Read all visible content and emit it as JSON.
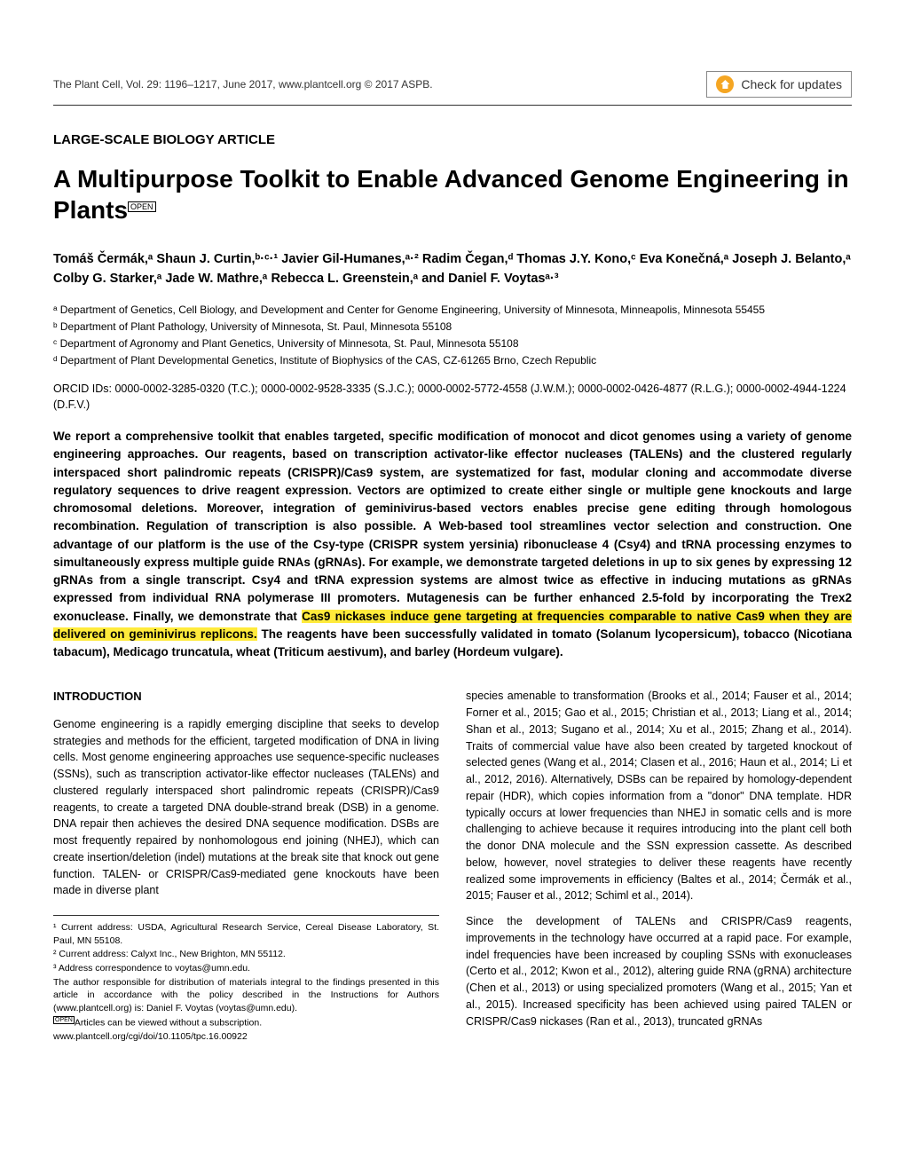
{
  "header": {
    "journal_line": "The Plant Cell, Vol. 29: 1196–1217, June 2017, www.plantcell.org © 2017 ASPB.",
    "check_updates": "Check for updates"
  },
  "article_type": "LARGE-SCALE BIOLOGY ARTICLE",
  "title_main": "A Multipurpose Toolkit to Enable Advanced Genome Engineering in Plants",
  "title_badge": "OPEN",
  "authors": "Tomáš Čermák,ᵃ Shaun J. Curtin,ᵇ·ᶜ·¹ Javier Gil-Humanes,ᵃ·² Radim Čegan,ᵈ Thomas J.Y. Kono,ᶜ Eva Konečná,ᵃ Joseph J. Belanto,ᵃ Colby G. Starker,ᵃ Jade W. Mathre,ᵃ Rebecca L. Greenstein,ᵃ and Daniel F. Voytasᵃ·³",
  "affiliations": {
    "a": "ᵃ Department of Genetics, Cell Biology, and Development and Center for Genome Engineering, University of Minnesota, Minneapolis, Minnesota 55455",
    "b": "ᵇ Department of Plant Pathology, University of Minnesota, St. Paul, Minnesota 55108",
    "c": "ᶜ Department of Agronomy and Plant Genetics, University of Minnesota, St. Paul, Minnesota 55108",
    "d": "ᵈ Department of Plant Developmental Genetics, Institute of Biophysics of the CAS, CZ-61265 Brno, Czech Republic"
  },
  "orcid": "ORCID IDs: 0000-0002-3285-0320 (T.C.); 0000-0002-9528-3335 (S.J.C.); 0000-0002-5772-4558 (J.W.M.); 0000-0002-0426-4877 (R.L.G.); 0000-0002-4944-1224 (D.F.V.)",
  "abstract": {
    "pre": "We report a comprehensive toolkit that enables targeted, specific modification of monocot and dicot genomes using a variety of genome engineering approaches. Our reagents, based on transcription activator-like effector nucleases (TALENs) and the clustered regularly interspaced short palindromic repeats (CRISPR)/Cas9 system, are systematized for fast, modular cloning and accommodate diverse regulatory sequences to drive reagent expression. Vectors are optimized to create either single or multiple gene knockouts and large chromosomal deletions. Moreover, integration of geminivirus-based vectors enables precise gene editing through homologous recombination. Regulation of transcription is also possible. A Web-based tool streamlines vector selection and construction. One advantage of our platform is the use of the Csy-type (CRISPR system yersinia) ribonuclease 4 (Csy4) and tRNA processing enzymes to simultaneously express multiple guide RNAs (gRNAs). For example, we demonstrate targeted deletions in up to six genes by expressing 12 gRNAs from a single transcript. Csy4 and tRNA expression systems are almost twice as effective in inducing mutations as gRNAs expressed from individual RNA polymerase III promoters. Mutagenesis can be further enhanced 2.5-fold by incorporating the Trex2 exonuclease. Finally, we demonstrate that ",
    "highlight": "Cas9 nickases induce gene targeting at frequencies comparable to native Cas9 when they are delivered on geminivirus replicons.",
    "post": " The reagents have been successfully validated in tomato (Solanum lycopersicum), tobacco (Nicotiana tabacum), Medicago truncatula, wheat (Triticum aestivum), and barley (Hordeum vulgare)."
  },
  "intro_heading": "INTRODUCTION",
  "col1_p1": "Genome engineering is a rapidly emerging discipline that seeks to develop strategies and methods for the efficient, targeted modification of DNA in living cells. Most genome engineering approaches use sequence-specific nucleases (SSNs), such as transcription activator-like effector nucleases (TALENs) and clustered regularly interspaced short palindromic repeats (CRISPR)/Cas9 reagents, to create a targeted DNA double-strand break (DSB) in a genome. DNA repair then achieves the desired DNA sequence modification. DSBs are most frequently repaired by nonhomologous end joining (NHEJ), which can create insertion/deletion (indel) mutations at the break site that knock out gene function. TALEN- or CRISPR/Cas9-mediated gene knockouts have been made in diverse plant",
  "col2_p1": "species amenable to transformation (Brooks et al., 2014; Fauser et al., 2014; Forner et al., 2015; Gao et al., 2015; Christian et al., 2013; Liang et al., 2014; Shan et al., 2013; Sugano et al., 2014; Xu et al., 2015; Zhang et al., 2014). Traits of commercial value have also been created by targeted knockout of selected genes (Wang et al., 2014; Clasen et al., 2016; Haun et al., 2014; Li et al., 2012, 2016). Alternatively, DSBs can be repaired by homology-dependent repair (HDR), which copies information from a \"donor\" DNA template. HDR typically occurs at lower frequencies than NHEJ in somatic cells and is more challenging to achieve because it requires introducing into the plant cell both the donor DNA molecule and the SSN expression cassette. As described below, however, novel strategies to deliver these reagents have recently realized some improvements in efficiency (Baltes et al., 2014; Čermák et al., 2015; Fauser et al., 2012; Schiml et al., 2014).",
  "col2_p2": "Since the development of TALENs and CRISPR/Cas9 reagents, improvements in the technology have occurred at a rapid pace. For example, indel frequencies have been increased by coupling SSNs with exonucleases (Certo et al., 2012; Kwon et al., 2012), altering guide RNA (gRNA) architecture (Chen et al., 2013) or using specialized promoters (Wang et al., 2015; Yan et al., 2015). Increased specificity has been achieved using paired TALEN or CRISPR/Cas9 nickases (Ran et al., 2013), truncated gRNAs",
  "footnotes": {
    "f1": "¹ Current address: USDA, Agricultural Research Service, Cereal Disease Laboratory, St. Paul, MN 55108.",
    "f2": "² Current address: Calyxt Inc., New Brighton, MN 55112.",
    "f3": "³ Address correspondence to voytas@umn.edu.",
    "f4": "The author responsible for distribution of materials integral to the findings presented in this article in accordance with the policy described in the Instructions for Authors (www.plantcell.org) is: Daniel F. Voytas (voytas@umn.edu).",
    "f5": "Articles can be viewed without a subscription.",
    "f6": "www.plantcell.org/cgi/doi/10.1105/tpc.16.00922"
  },
  "colors": {
    "highlight_bg": "#ffeb3b",
    "check_icon_bg": "#f5a623",
    "text": "#000000",
    "rule": "#333333"
  },
  "typography": {
    "title_fontsize": 28,
    "body_fontsize": 12.5,
    "abstract_fontsize": 13.5,
    "footnote_fontsize": 10.5
  }
}
